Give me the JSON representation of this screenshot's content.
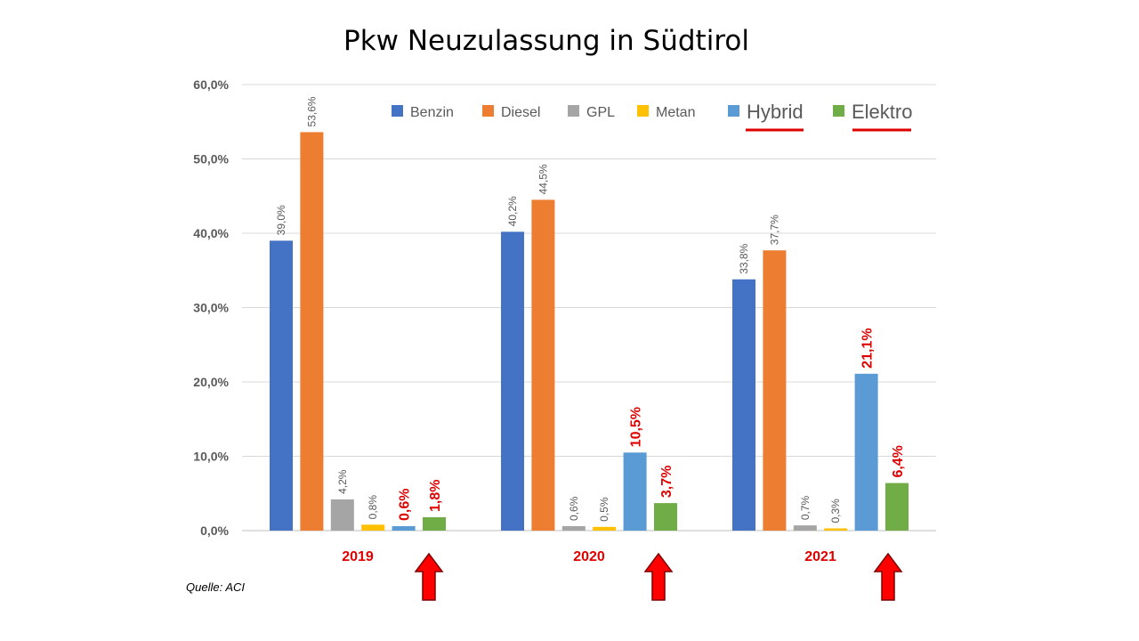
{
  "chart_data": {
    "type": "bar",
    "title": "Pkw Neuzulassung  in Südtirol",
    "categories": [
      "2019",
      "2020",
      "2021"
    ],
    "series": [
      {
        "name": "Benzin",
        "color": "#4472C4",
        "values": [
          39.0,
          40.2,
          33.8
        ],
        "labels": [
          "39,0%",
          "40,2%",
          "33,8%"
        ],
        "label_style": "normal"
      },
      {
        "name": "Diesel",
        "color": "#ED7D31",
        "values": [
          53.6,
          44.5,
          37.7
        ],
        "labels": [
          "53,6%",
          "44,5%",
          "37,7%"
        ],
        "label_style": "normal"
      },
      {
        "name": "GPL",
        "color": "#A5A5A5",
        "values": [
          4.2,
          0.6,
          0.7
        ],
        "labels": [
          "4,2%",
          "0,6%",
          "0,7%"
        ],
        "label_style": "normal"
      },
      {
        "name": "Metan",
        "color": "#FFC000",
        "values": [
          0.8,
          0.5,
          0.3
        ],
        "labels": [
          "0,8%",
          "0,5%",
          "0,3%"
        ],
        "label_style": "normal"
      },
      {
        "name": "Hybrid",
        "color": "#5B9BD5",
        "values": [
          0.6,
          10.5,
          21.1
        ],
        "labels": [
          "0,6%",
          "10,5%",
          "21,1%"
        ],
        "label_style": "highlight"
      },
      {
        "name": "Elektro",
        "color": "#70AD47",
        "values": [
          1.8,
          3.7,
          6.4
        ],
        "labels": [
          "1,8%",
          "3,7%",
          "6,4%"
        ],
        "label_style": "highlight"
      }
    ],
    "ylim": [
      0,
      60
    ],
    "yticks": [
      "0,0%",
      "10,0%",
      "20,0%",
      "30,0%",
      "40,0%",
      "50,0%",
      "60,0%"
    ],
    "grid": true,
    "legend_position": "top-right",
    "highlighted_series": [
      "Hybrid",
      "Elektro"
    ],
    "highlight_color": "#E00000",
    "arrow_color": "#FF0000"
  },
  "source": "Quelle: ACI"
}
